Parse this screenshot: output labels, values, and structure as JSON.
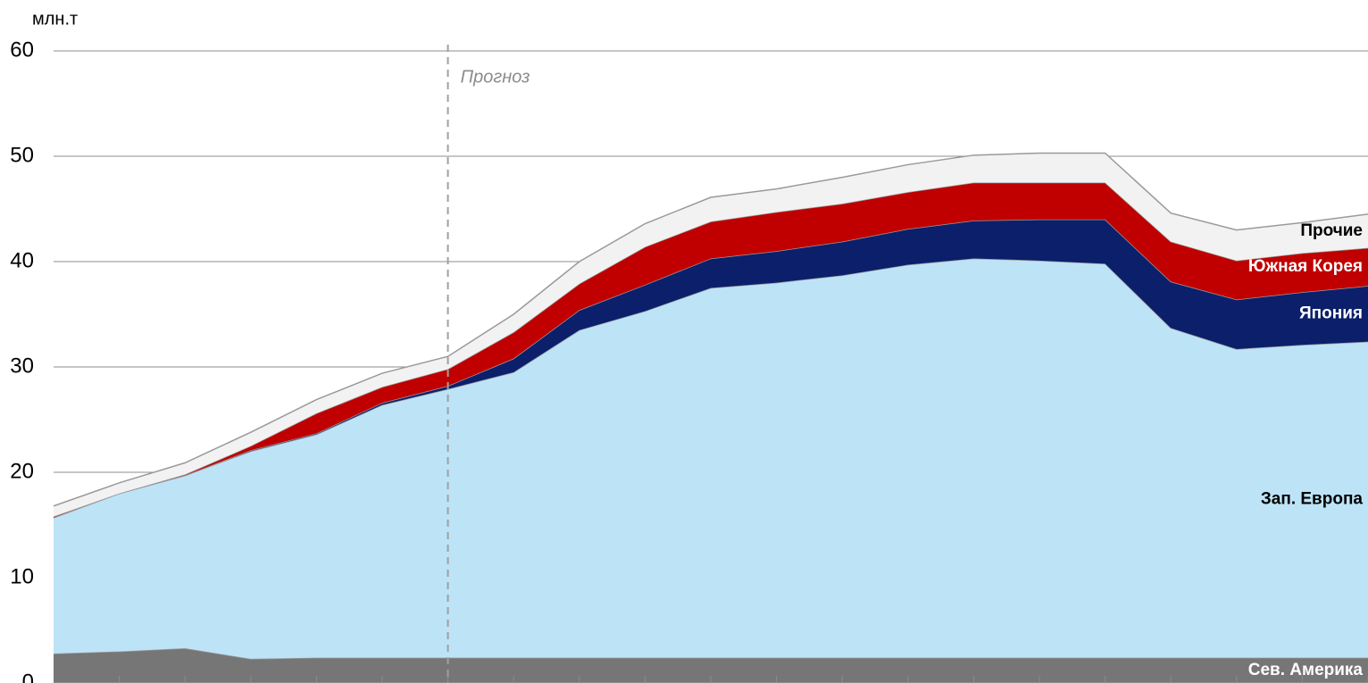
{
  "chart_data": {
    "type": "stacked-area",
    "y_label": "млн.т",
    "categories": [
      null,
      null,
      null,
      null,
      null,
      null,
      null,
      null,
      null,
      null,
      null,
      null,
      null,
      null,
      null,
      null,
      null,
      null,
      null,
      null,
      null
    ],
    "series": [
      {
        "name": "Сев. Америка",
        "color": "#767676",
        "label_color": "#ffffff",
        "values": [
          2.8,
          3.0,
          3.3,
          2.3,
          2.4,
          2.4,
          2.4,
          2.4,
          2.4,
          2.4,
          2.4,
          2.4,
          2.4,
          2.4,
          2.4,
          2.4,
          2.4,
          2.4,
          2.4,
          2.4,
          2.4
        ]
      },
      {
        "name": "Зап. Европа",
        "color": "#bde3f7",
        "label_color": "#000000",
        "values": [
          12.9,
          15.0,
          16.4,
          19.7,
          21.2,
          24.0,
          25.5,
          27.1,
          31.1,
          32.9,
          35.1,
          35.6,
          36.3,
          37.3,
          37.9,
          37.7,
          37.4,
          31.3,
          29.3,
          29.7,
          30.0
        ]
      },
      {
        "name": "Япония",
        "color": "#0b1f6b",
        "label_color": "#ffffff",
        "values": [
          0,
          0,
          0,
          0.1,
          0.1,
          0.2,
          0.3,
          1.3,
          1.9,
          2.5,
          2.8,
          3.0,
          3.2,
          3.4,
          3.6,
          3.9,
          4.2,
          4.4,
          4.7,
          5.0,
          5.3
        ]
      },
      {
        "name": "Южная Корея",
        "color": "#c00000",
        "label_color": "#ffffff",
        "values": [
          0.1,
          0,
          0.1,
          0.4,
          1.9,
          1.5,
          1.6,
          2.5,
          2.5,
          3.6,
          3.5,
          3.7,
          3.6,
          3.5,
          3.6,
          3.5,
          3.5,
          3.8,
          3.7,
          3.7,
          3.6
        ]
      },
      {
        "name": "Прочие",
        "color": "#f2f2f2",
        "label_color": "#000000",
        "values": [
          1.0,
          1.0,
          1.1,
          1.3,
          1.3,
          1.3,
          1.2,
          1.7,
          2.1,
          2.2,
          2.3,
          2.2,
          2.5,
          2.6,
          2.6,
          2.8,
          2.8,
          2.7,
          2.9,
          2.9,
          3.2
        ]
      }
    ],
    "ylim": [
      0,
      60
    ],
    "yticks": [
      0,
      10,
      20,
      30,
      40,
      50,
      60
    ],
    "grid": true,
    "annotations": [
      {
        "text": "Прогноз",
        "category_index": 6
      }
    ]
  }
}
